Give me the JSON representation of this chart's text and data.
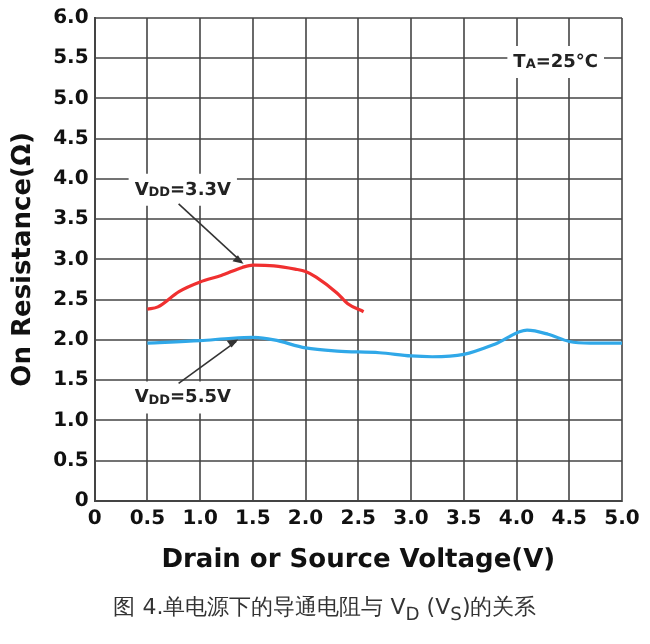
{
  "chart_data": {
    "type": "line",
    "xlabel": "Drain or Source Voltage(V)",
    "ylabel": "On Resistance(Ω)",
    "xlim": [
      0,
      5
    ],
    "ylim": [
      0,
      6
    ],
    "xticks": [
      0,
      {
        "value": 0.5,
        "label": "0.5"
      },
      {
        "value": 1,
        "label": "1.0"
      },
      {
        "value": 1.5,
        "label": "1.5"
      },
      {
        "value": 2,
        "label": "2.0"
      },
      {
        "value": 2.5,
        "label": "2.5"
      },
      {
        "value": 3,
        "label": "3.0"
      },
      {
        "value": 3.5,
        "label": "3.5"
      },
      {
        "value": 4,
        "label": "4.0"
      },
      {
        "value": 4.5,
        "label": "4.5"
      },
      {
        "value": 5,
        "label": "5.0"
      }
    ],
    "yticks": [
      0,
      {
        "value": 0.5,
        "label": "0.5"
      },
      {
        "value": 1,
        "label": "1.0"
      },
      {
        "value": 1.5,
        "label": "1.5"
      },
      {
        "value": 2,
        "label": "2.0"
      },
      {
        "value": 2.5,
        "label": "2.5"
      },
      {
        "value": 3,
        "label": "3.0"
      },
      {
        "value": 3.5,
        "label": "3.5"
      },
      {
        "value": 4,
        "label": "4.0"
      },
      {
        "value": 4.5,
        "label": "4.5"
      },
      {
        "value": 5,
        "label": "5.0"
      },
      {
        "value": 5.5,
        "label": "5.5"
      },
      {
        "value": 6,
        "label": "6.0"
      }
    ],
    "grid": true,
    "legend": false,
    "marker": "none",
    "line_style": "solid",
    "series": [
      {
        "color": "#f03030",
        "x": [
          0.5,
          0.6,
          0.8,
          1.0,
          1.2,
          1.4,
          1.5,
          1.7,
          1.9,
          2.0,
          2.1,
          2.3,
          2.4,
          2.55
        ],
        "values": [
          2.38,
          2.41,
          2.6,
          2.72,
          2.8,
          2.9,
          2.93,
          2.92,
          2.88,
          2.85,
          2.78,
          2.58,
          2.45,
          2.35
        ]
      },
      {
        "color": "#30a8e8",
        "x": [
          0.5,
          1.0,
          1.3,
          1.5,
          1.7,
          2.0,
          2.3,
          2.7,
          3.0,
          3.2,
          3.5,
          3.8,
          4.1,
          4.3,
          4.5,
          4.7,
          5.0
        ],
        "values": [
          1.96,
          1.99,
          2.02,
          2.03,
          2.0,
          1.9,
          1.86,
          1.84,
          1.8,
          1.79,
          1.82,
          1.95,
          2.12,
          2.07,
          1.98,
          1.96,
          1.96
        ]
      }
    ],
    "annotations": [
      {
        "text": "V$_{DD}$=3.3V",
        "x": 1.45,
        "y": 2.92
      },
      {
        "text": "V$_{DD}$=5.5V",
        "x": 1.4,
        "y": 2.03
      },
      "T$_{A}$=25°C",
      "图 4.单电源下的导通电阻与 V$_{D}$ (V$_{S}$)的关系"
    ]
  }
}
